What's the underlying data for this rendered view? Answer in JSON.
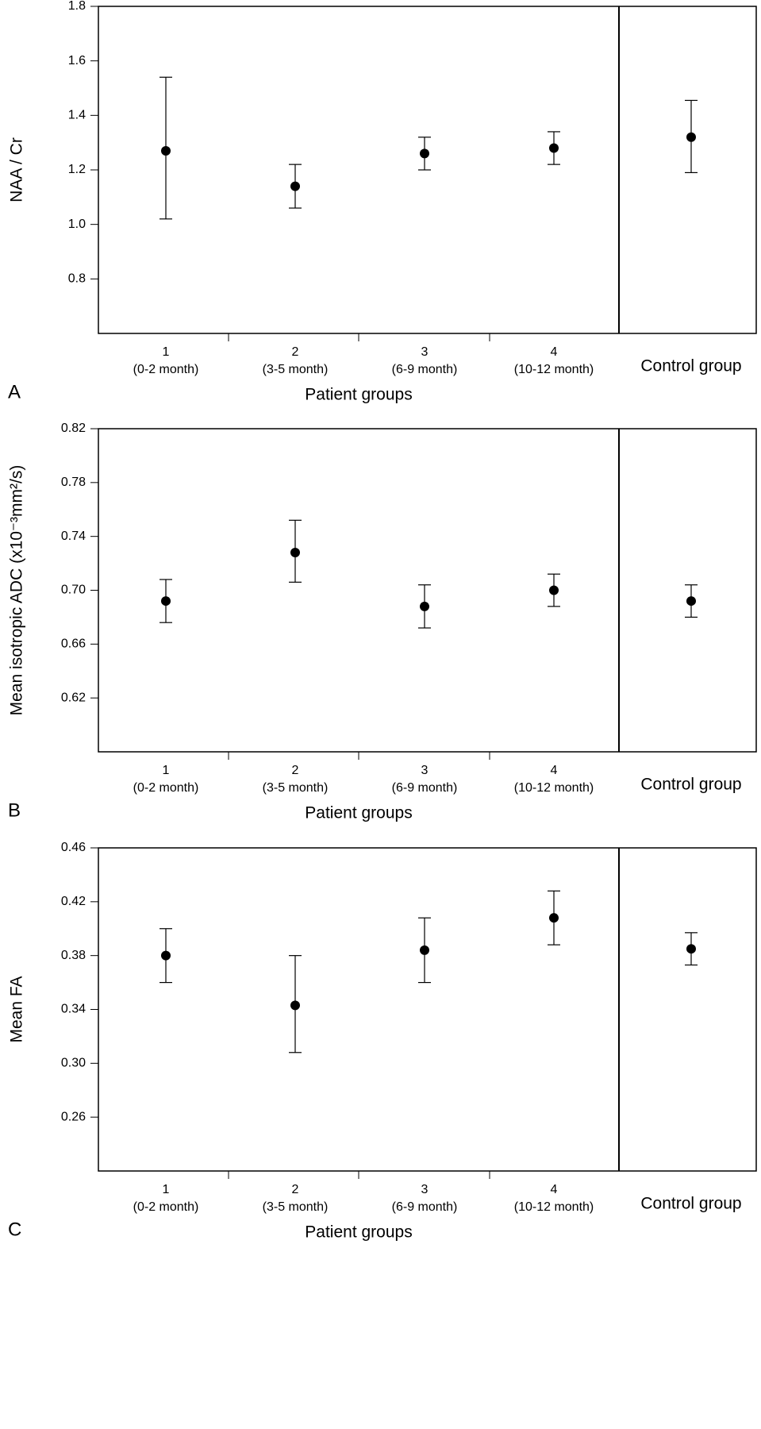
{
  "chart_data": [
    {
      "type": "errorbar",
      "panel": "A",
      "ylabel": "NAA / Cr",
      "xlabel": "Patient groups",
      "categories": [
        "1",
        "2",
        "3",
        "4",
        "Control group"
      ],
      "category_sublabels": [
        "(0-2 month)",
        "(3-5 month)",
        "(6-9 month)",
        "(10-12 month)",
        null
      ],
      "values": [
        1.27,
        1.14,
        1.26,
        1.28,
        1.32
      ],
      "lower": [
        1.02,
        1.06,
        1.2,
        1.22,
        1.19
      ],
      "upper": [
        1.54,
        1.22,
        1.32,
        1.34,
        1.455
      ],
      "color": "#000000",
      "ylim": [
        0.6,
        1.8
      ],
      "yticks": [
        {
          "value": 0.8,
          "label": "0.8"
        },
        {
          "value": 1.0,
          "label": "1.0"
        },
        {
          "value": 1.2,
          "label": "1.2"
        },
        {
          "value": 1.4,
          "label": "1.4"
        },
        {
          "value": 1.6,
          "label": "1.6"
        },
        {
          "value": 1.8,
          "label": "1.8"
        }
      ]
    },
    {
      "type": "errorbar",
      "panel": "B",
      "ylabel": "Mean isotropic ADC (x10⁻³mm²/s)",
      "xlabel": "Patient groups",
      "categories": [
        "1",
        "2",
        "3",
        "4",
        "Control group"
      ],
      "category_sublabels": [
        "(0-2 month)",
        "(3-5 month)",
        "(6-9 month)",
        "(10-12 month)",
        null
      ],
      "values": [
        0.692,
        0.728,
        0.688,
        0.7,
        0.692
      ],
      "lower": [
        0.676,
        0.706,
        0.672,
        0.688,
        0.68
      ],
      "upper": [
        0.708,
        0.752,
        0.704,
        0.712,
        0.704
      ],
      "color": "#000000",
      "ylim": [
        0.58,
        0.82
      ],
      "yticks": [
        {
          "value": 0.62,
          "label": "0.62"
        },
        {
          "value": 0.66,
          "label": "0.66"
        },
        {
          "value": 0.7,
          "label": "0.70"
        },
        {
          "value": 0.74,
          "label": "0.74"
        },
        {
          "value": 0.78,
          "label": "0.78"
        },
        {
          "value": 0.82,
          "label": "0.82"
        }
      ]
    },
    {
      "type": "errorbar",
      "panel": "C",
      "ylabel": "Mean FA",
      "xlabel": "Patient groups",
      "categories": [
        "1",
        "2",
        "3",
        "4",
        "Control group"
      ],
      "category_sublabels": [
        "(0-2 month)",
        "(3-5 month)",
        "(6-9 month)",
        "(10-12 month)",
        null
      ],
      "values": [
        0.38,
        0.343,
        0.384,
        0.408,
        0.385
      ],
      "lower": [
        0.36,
        0.308,
        0.36,
        0.388,
        0.373
      ],
      "upper": [
        0.4,
        0.38,
        0.408,
        0.428,
        0.397
      ],
      "color": "#000000",
      "ylim": [
        0.22,
        0.46
      ],
      "yticks": [
        {
          "value": 0.26,
          "label": "0.26"
        },
        {
          "value": 0.3,
          "label": "0.30"
        },
        {
          "value": 0.34,
          "label": "0.34"
        },
        {
          "value": 0.38,
          "label": "0.38"
        },
        {
          "value": 0.42,
          "label": "0.42"
        },
        {
          "value": 0.46,
          "label": "0.46"
        }
      ]
    }
  ]
}
